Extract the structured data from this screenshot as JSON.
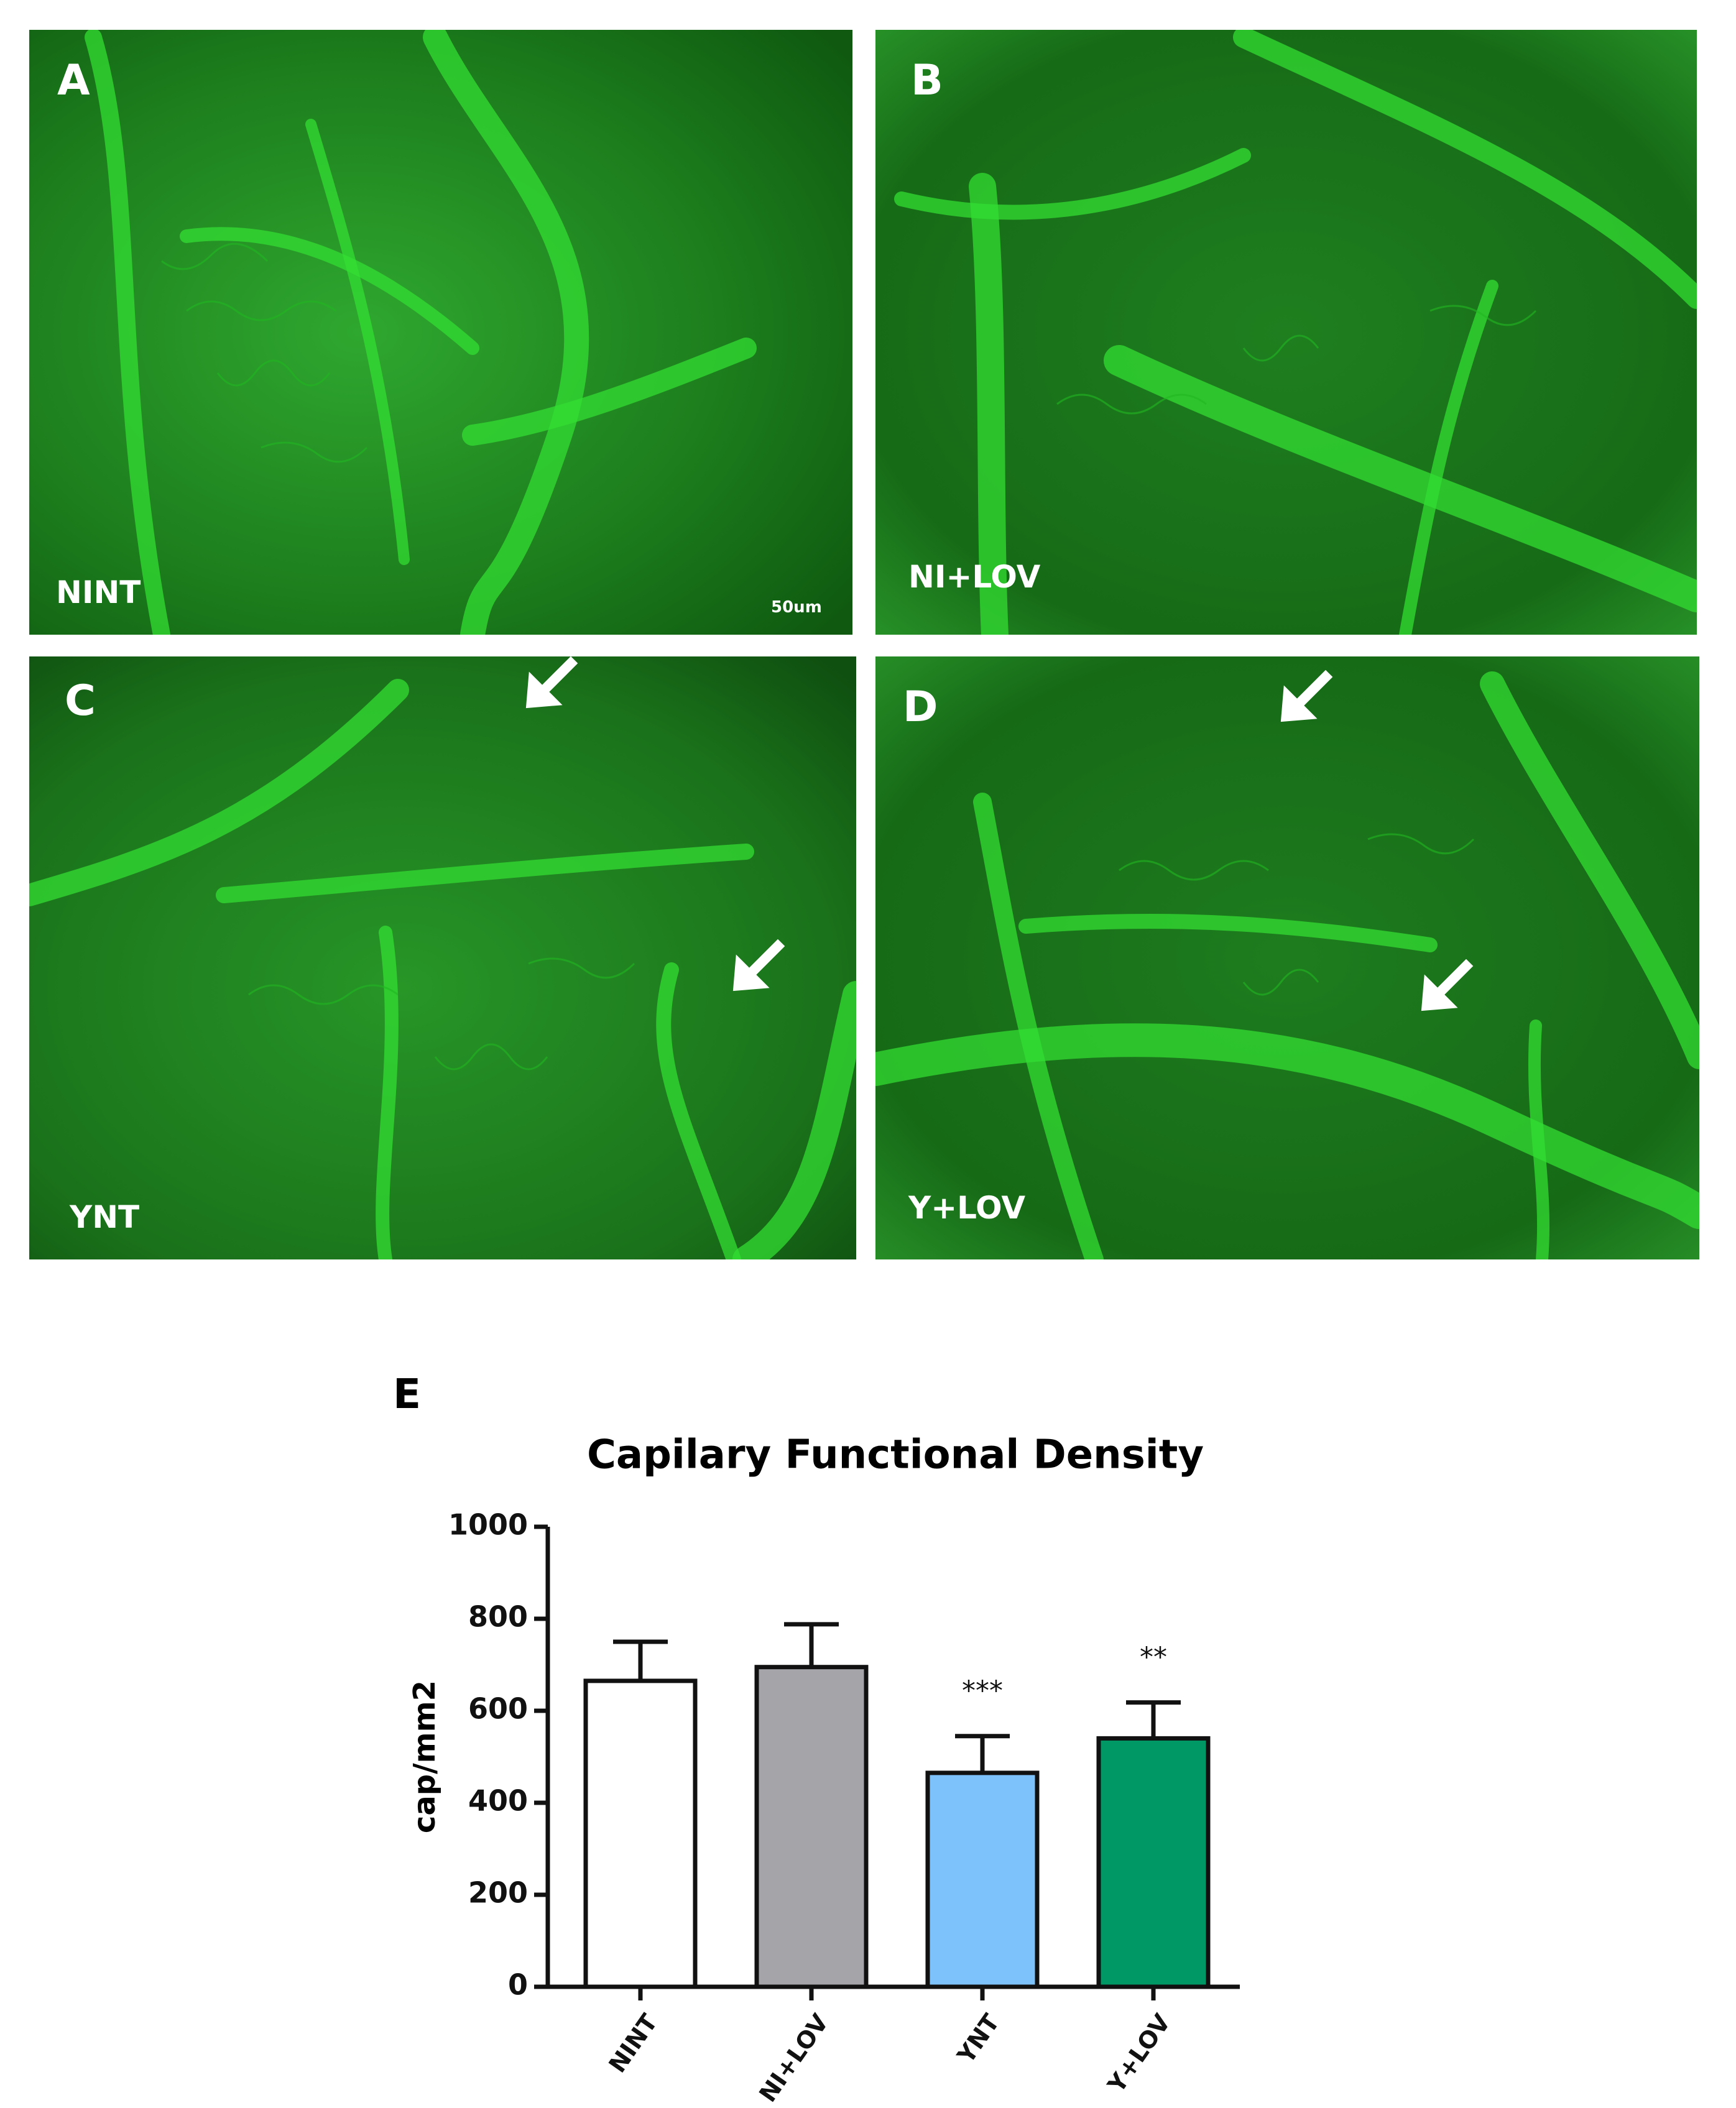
{
  "panels": [
    {
      "letter": "A",
      "label": "NINT"
    },
    {
      "letter": "B",
      "label": "NI+LOV"
    },
    {
      "letter": "C",
      "label": "YNT"
    },
    {
      "letter": "D",
      "label": "Y+LOV"
    }
  ],
  "scale_bar": "50um",
  "chart_data": {
    "type": "bar",
    "panel_letter": "E",
    "title": "Capilary Functional Density",
    "y_label": "cap/mm2",
    "categories": [
      "NINT",
      "NI+LOV",
      "YNT",
      "Y+LOV"
    ],
    "values": [
      665,
      695,
      465,
      540
    ],
    "errors": [
      85,
      93,
      80,
      78
    ],
    "colors": [
      "#ffffff",
      "#a5a4a8",
      "#7ec2fb",
      "#009966"
    ],
    "significance": [
      null,
      null,
      "***",
      "**"
    ],
    "ylim": [
      0,
      1000
    ],
    "yticks": [
      0,
      200,
      400,
      600,
      800,
      1000
    ]
  }
}
